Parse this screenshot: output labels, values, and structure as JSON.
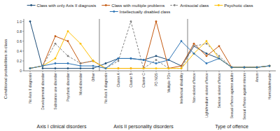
{
  "chart_data": {
    "type": "line",
    "categories": [
      "No Axis II diagnosis",
      "Developmental disorder",
      "Substance use disorder",
      "Psychotic disorder",
      "Mood disorder",
      "Other",
      "No Axis II diagnosis",
      "Cluster A",
      "Cluster B",
      "Cluster C",
      "PD NOS",
      "Multiple PDs",
      "Intellectual disability",
      "Non-violent offence",
      "Light/medium violent offence",
      "Serious violent offence",
      "Sexual offence against adults",
      "Sexual offence against minors",
      "Arson",
      "Homicide/murder"
    ],
    "groups": [
      {
        "name": "Axis I clinical disorders",
        "start": 0,
        "end": 5
      },
      {
        "name": "Axis II personality disorders",
        "start": 6,
        "end": 12
      },
      {
        "name": "Type of offence",
        "start": 13,
        "end": 19
      }
    ],
    "series": [
      {
        "name": "Class with only Axis II diagnosis",
        "color": "#1f4e79",
        "marker": "circle",
        "line_style": "solid",
        "values": [
          1.0,
          0.05,
          0.05,
          0.05,
          0.05,
          0.05,
          0.15,
          0.25,
          0.25,
          0.22,
          0.3,
          0.22,
          0.1,
          0.5,
          0.35,
          0.25,
          0.07,
          0.07,
          0.07,
          0.1
        ]
      },
      {
        "name": "Class with multiple problems",
        "color": "#c55a11",
        "marker": "circle",
        "line_style": "solid",
        "values": [
          0.05,
          0.1,
          0.7,
          0.6,
          0.15,
          0.2,
          0.05,
          0.05,
          0.05,
          0.05,
          1.0,
          0.05,
          0.1,
          0.55,
          0.3,
          0.5,
          0.07,
          0.07,
          0.07,
          0.1
        ]
      },
      {
        "name": "Antisocial class",
        "color": "#808080",
        "marker": "circle",
        "line_style": "dashed",
        "values": [
          0.05,
          0.1,
          0.55,
          0.3,
          0.15,
          0.2,
          0.05,
          0.2,
          1.0,
          0.05,
          0.22,
          0.05,
          0.05,
          0.5,
          0.55,
          0.3,
          0.07,
          0.07,
          0.07,
          0.1
        ]
      },
      {
        "name": "Psychotic class",
        "color": "#ffc000",
        "marker": "circle",
        "line_style": "solid",
        "values": [
          0.05,
          0.1,
          0.25,
          0.8,
          0.55,
          0.2,
          0.05,
          0.05,
          0.05,
          0.05,
          0.05,
          0.05,
          0.05,
          0.35,
          0.6,
          0.25,
          0.07,
          0.07,
          0.07,
          0.1
        ]
      },
      {
        "name": "Intellectually disabled class",
        "color": "#2e75b6",
        "marker": "circle",
        "line_style": "solid",
        "values": [
          0.05,
          0.1,
          0.15,
          0.15,
          0.1,
          0.1,
          0.05,
          0.25,
          0.25,
          0.22,
          0.15,
          0.22,
          0.6,
          0.35,
          0.15,
          0.25,
          0.07,
          0.07,
          0.07,
          0.1
        ]
      }
    ],
    "ylabel": "Conditional probabilities in class",
    "ylim": [
      0,
      1.05
    ],
    "yticks": [
      0,
      0.2,
      0.4,
      0.6,
      0.8,
      {
        "value": 1.0,
        "label": "1.0"
      }
    ],
    "legend": "top"
  }
}
